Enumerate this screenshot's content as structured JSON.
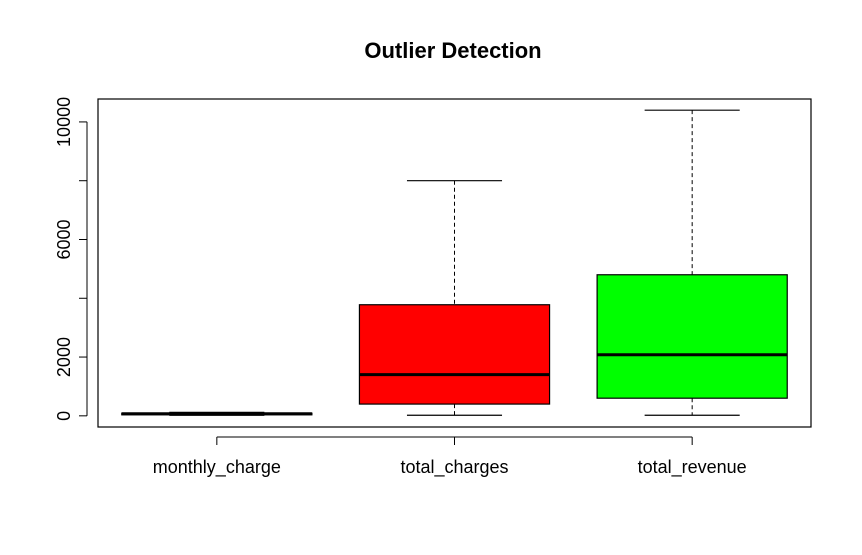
{
  "chart_data": {
    "type": "boxplot",
    "title": "Outlier Detection",
    "xlabel": "",
    "ylabel": "",
    "categories": [
      "monthly_charge",
      "total_charges",
      "total_revenue"
    ],
    "colors": [
      "#000000",
      "#ff0000",
      "#00ff00"
    ],
    "boxes": [
      {
        "name": "monthly_charge",
        "whisker_low": 18,
        "q1": 35,
        "median": 70,
        "q3": 90,
        "whisker_high": 118
      },
      {
        "name": "total_charges",
        "whisker_low": 20,
        "q1": 400,
        "median": 1400,
        "q3": 3780,
        "whisker_high": 8000
      },
      {
        "name": "total_revenue",
        "whisker_low": 20,
        "q1": 600,
        "median": 2080,
        "q3": 4800,
        "whisker_high": 10400
      }
    ],
    "y_ticks": [
      0,
      2000,
      6000,
      10000
    ],
    "y_minor_ticks": [
      4000,
      8000
    ],
    "ylim": [
      -380,
      10780
    ],
    "grid": false,
    "legend": "none"
  }
}
